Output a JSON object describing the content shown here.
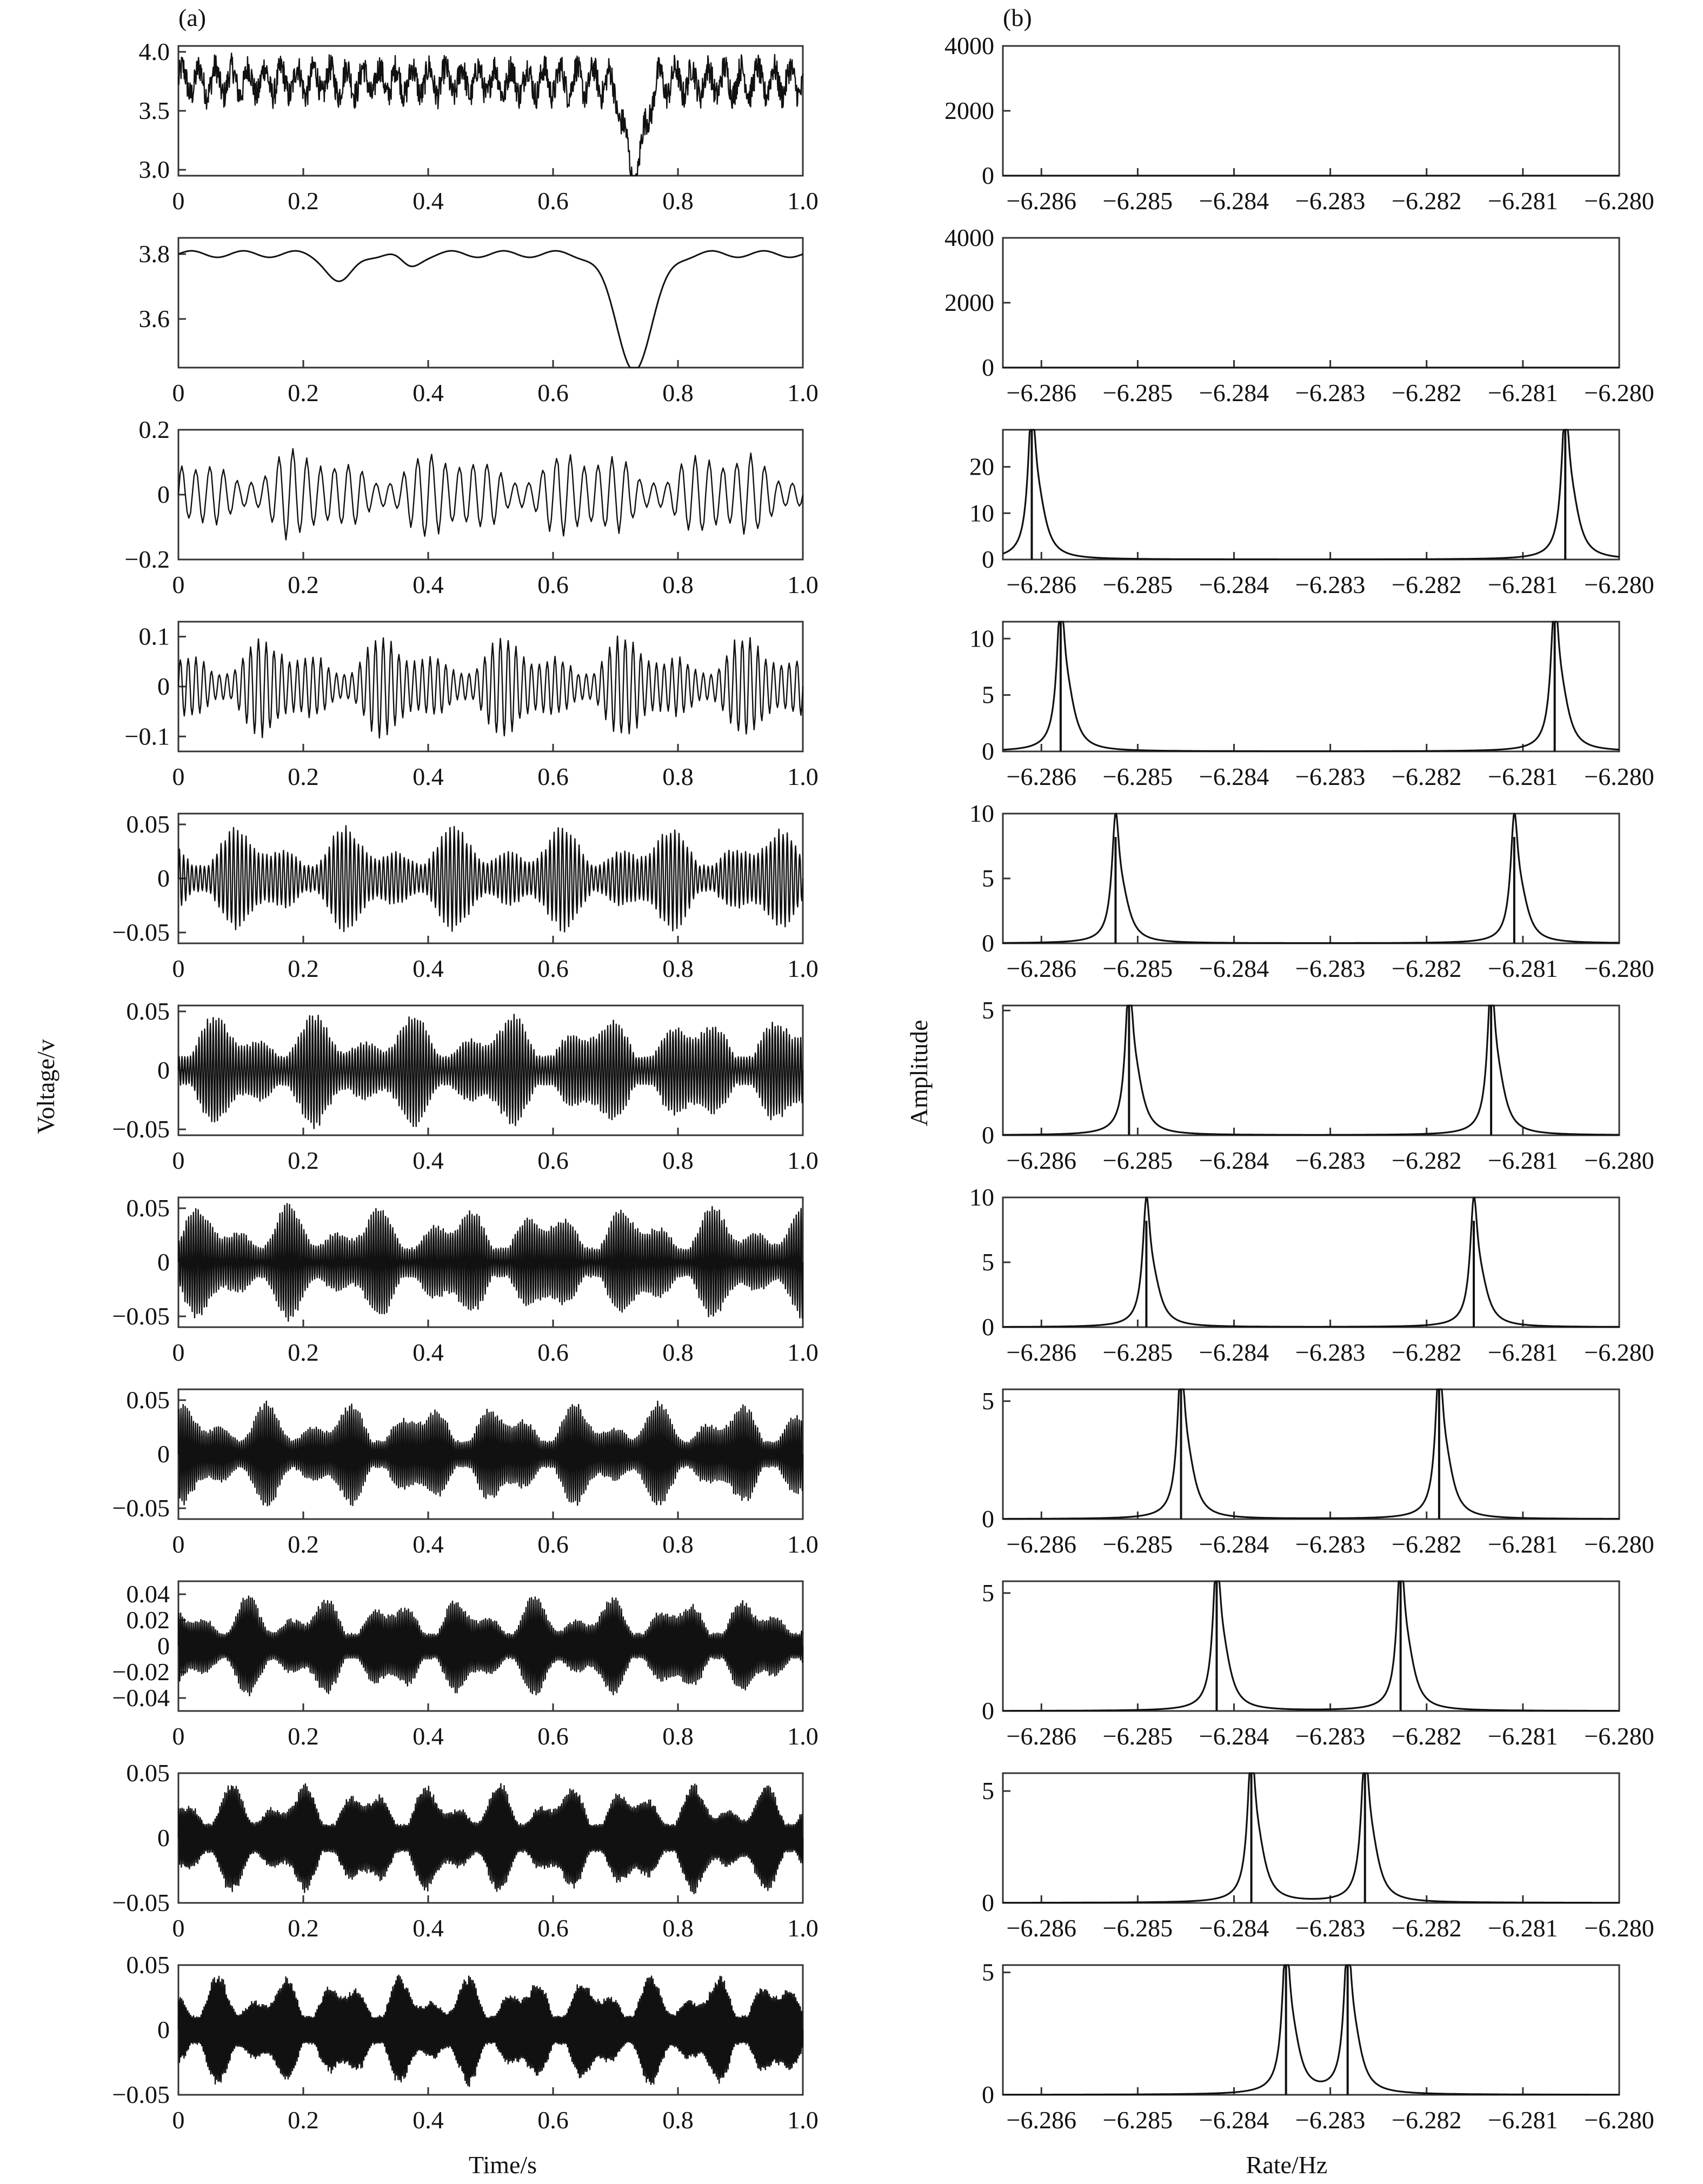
{
  "panel_labels": {
    "a": "(a)",
    "b": "(b)"
  },
  "left_ylabel": "Voltage/v",
  "left_xlabel": "Time/s",
  "right_ylabel": "Amplitude",
  "right_xlabel": "Rate/Hz",
  "colors": {
    "ink": "#111111",
    "frame": "#333333",
    "background": "#ffffff"
  },
  "chart_data": [
    {
      "id": "left",
      "type": "line",
      "title": "",
      "xlabel": "Time/s",
      "ylabel": "Voltage/v",
      "xlim": [
        0,
        1.0
      ],
      "xticks": [
        0,
        0.2,
        0.4,
        0.6,
        0.8,
        1.0
      ],
      "xtick_labels": [
        "0",
        "0.2",
        "0.4",
        "0.6",
        "0.8",
        "1.0"
      ],
      "grid": false,
      "panels": [
        {
          "ylim": [
            2.95,
            4.05
          ],
          "yticks": [
            3.0,
            3.5,
            4.0
          ],
          "ytick_labels": [
            "3.0",
            "3.5",
            "4.0"
          ],
          "signal": "raw",
          "mean": 3.75,
          "amp": 0.2,
          "dip": {
            "at": 0.73,
            "depth": 0.8,
            "width": 0.015
          }
        },
        {
          "ylim": [
            3.45,
            3.85
          ],
          "yticks": [
            3.6,
            3.8
          ],
          "ytick_labels": [
            "3.6",
            "3.8"
          ],
          "signal": "trend",
          "mean": 3.8,
          "amp": 0.01,
          "dips": [
            {
              "at": 0.26,
              "depth": 0.09,
              "width": 0.02
            },
            {
              "at": 0.37,
              "depth": 0.04,
              "width": 0.015
            },
            {
              "at": 0.73,
              "depth": 0.35,
              "width": 0.03
            }
          ]
        },
        {
          "ylim": [
            -0.2,
            0.2
          ],
          "yticks": [
            -0.2,
            0,
            0.2
          ],
          "ytick_labels": [
            "−0.2",
            "0",
            "0.2"
          ],
          "signal": "osc",
          "amp": 0.16,
          "cycles": 45
        },
        {
          "ylim": [
            -0.13,
            0.13
          ],
          "yticks": [
            -0.1,
            0,
            0.1
          ],
          "ytick_labels": [
            "−0.1",
            "0",
            "0.1"
          ],
          "signal": "osc",
          "amp": 0.11,
          "cycles": 80
        },
        {
          "ylim": [
            -0.06,
            0.06
          ],
          "yticks": [
            -0.05,
            0,
            0.05
          ],
          "ytick_labels": [
            "−0.05",
            "0",
            "0.05"
          ],
          "signal": "osc",
          "amp": 0.05,
          "cycles": 150
        },
        {
          "ylim": [
            -0.055,
            0.055
          ],
          "yticks": [
            -0.05,
            0,
            0.05
          ],
          "ytick_labels": [
            "−0.05",
            "0",
            "0.05"
          ],
          "signal": "osc",
          "amp": 0.05,
          "cycles": 220
        },
        {
          "ylim": [
            -0.06,
            0.06
          ],
          "yticks": [
            -0.05,
            0,
            0.05
          ],
          "ytick_labels": [
            "−0.05",
            "0",
            "0.05"
          ],
          "signal": "osc",
          "amp": 0.055,
          "cycles": 260
        },
        {
          "ylim": [
            -0.06,
            0.06
          ],
          "yticks": [
            -0.05,
            0,
            0.05
          ],
          "ytick_labels": [
            "−0.05",
            "0",
            "0.05"
          ],
          "signal": "osc",
          "amp": 0.05,
          "cycles": 300
        },
        {
          "ylim": [
            -0.05,
            0.05
          ],
          "yticks": [
            -0.04,
            -0.02,
            0,
            0.02,
            0.04
          ],
          "ytick_labels": [
            "−0.04",
            "−0.02",
            "0",
            "0.02",
            "0.04"
          ],
          "signal": "osc",
          "amp": 0.04,
          "cycles": 340
        },
        {
          "ylim": [
            -0.05,
            0.05
          ],
          "yticks": [
            -0.05,
            0,
            0.05
          ],
          "ytick_labels": [
            "−0.05",
            "0",
            "0.05"
          ],
          "signal": "osc",
          "amp": 0.045,
          "cycles": 380
        },
        {
          "ylim": [
            -0.05,
            0.05
          ],
          "yticks": [
            -0.05,
            0,
            0.05
          ],
          "ytick_labels": [
            "−0.05",
            "0",
            "0.05"
          ],
          "signal": "osc",
          "amp": 0.045,
          "cycles": 420
        }
      ]
    },
    {
      "id": "right",
      "type": "line",
      "title": "",
      "xlabel": "Rate/Hz",
      "ylabel": "Amplitude",
      "xlim": [
        -6.2864,
        -6.28
      ],
      "xticks": [
        -6.286,
        -6.285,
        -6.284,
        -6.283,
        -6.282,
        -6.281,
        -6.28
      ],
      "xtick_labels": [
        "−6.286",
        "−6.285",
        "−6.284",
        "−6.283",
        "−6.282",
        "−6.281",
        "−6.280"
      ],
      "grid": false,
      "panels": [
        {
          "ylim": [
            0,
            4000
          ],
          "yticks": [
            0,
            2000,
            4000
          ],
          "ytick_labels": [
            "0",
            "2000",
            "4000"
          ],
          "peaks": []
        },
        {
          "ylim": [
            0,
            4000
          ],
          "yticks": [
            0,
            2000,
            4000
          ],
          "ytick_labels": [
            "0",
            "2000",
            "4000"
          ],
          "peaks": []
        },
        {
          "ylim": [
            0,
            28
          ],
          "yticks": [
            0,
            10,
            20
          ],
          "ytick_labels": [
            "0",
            "10",
            "20"
          ],
          "peaks": [
            {
              "x": -6.2861,
              "h": 28
            },
            {
              "x": -6.28056,
              "h": 28
            }
          ]
        },
        {
          "ylim": [
            0,
            11.5
          ],
          "yticks": [
            0,
            5,
            10
          ],
          "ytick_labels": [
            "0",
            "5",
            "10"
          ],
          "peaks": [
            {
              "x": -6.2858,
              "h": 11.5
            },
            {
              "x": -6.28067,
              "h": 11.5
            }
          ]
        },
        {
          "ylim": [
            0,
            10
          ],
          "yticks": [
            0,
            5,
            10
          ],
          "ytick_labels": [
            "0",
            "5",
            "10"
          ],
          "peaks": [
            {
              "x": -6.28523,
              "h": 8.2
            },
            {
              "x": -6.28109,
              "h": 8.2
            }
          ]
        },
        {
          "ylim": [
            0,
            5.2
          ],
          "yticks": [
            0,
            5
          ],
          "ytick_labels": [
            "0",
            "5"
          ],
          "peaks": [
            {
              "x": -6.28509,
              "h": 5.2
            },
            {
              "x": -6.28133,
              "h": 5.2
            }
          ]
        },
        {
          "ylim": [
            0,
            10
          ],
          "yticks": [
            0,
            5,
            10
          ],
          "ytick_labels": [
            "0",
            "5",
            "10"
          ],
          "peaks": [
            {
              "x": -6.28491,
              "h": 8.2
            },
            {
              "x": -6.28151,
              "h": 8.2
            }
          ]
        },
        {
          "ylim": [
            0,
            5.5
          ],
          "yticks": [
            0,
            5
          ],
          "ytick_labels": [
            "0",
            "5"
          ],
          "peaks": [
            {
              "x": -6.28455,
              "h": 5.5
            },
            {
              "x": -6.28187,
              "h": 5.5
            }
          ]
        },
        {
          "ylim": [
            0,
            5.5
          ],
          "yticks": [
            0,
            5
          ],
          "ytick_labels": [
            "0",
            "5"
          ],
          "peaks": [
            {
              "x": -6.28418,
              "h": 5.5
            },
            {
              "x": -6.28227,
              "h": 5.5
            }
          ]
        },
        {
          "ylim": [
            0,
            5.8
          ],
          "yticks": [
            0,
            5
          ],
          "ytick_labels": [
            "0",
            "5"
          ],
          "peaks": [
            {
              "x": -6.28382,
              "h": 5.8
            },
            {
              "x": -6.28264,
              "h": 5.8
            }
          ]
        },
        {
          "ylim": [
            0,
            5.3
          ],
          "yticks": [
            0,
            5
          ],
          "ytick_labels": [
            "0",
            "5"
          ],
          "peaks": [
            {
              "x": -6.28346,
              "h": 5.3
            },
            {
              "x": -6.28282,
              "h": 5.3
            }
          ]
        }
      ]
    }
  ]
}
